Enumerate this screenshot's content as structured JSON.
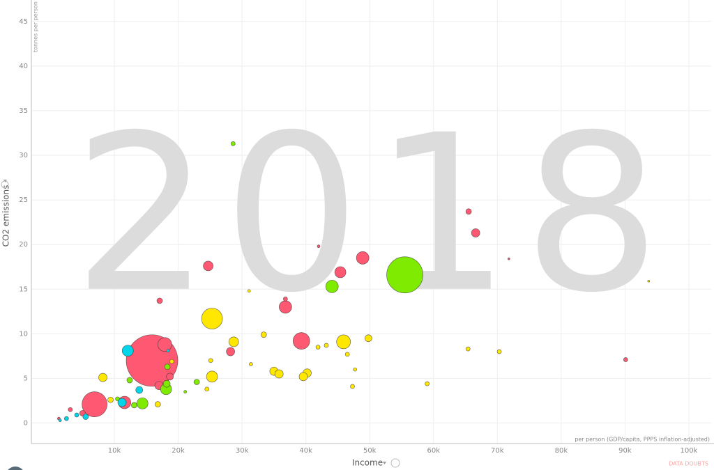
{
  "chart_data": {
    "type": "bubble",
    "watermark": "2018",
    "y_label": "CO2 emissions",
    "y_unit": "tonnes per person",
    "x_label": "Income",
    "x_unit": "per person (GDP/capita, PPPS inflation-adjusted)",
    "note": "DATA DOUBTS",
    "xlim": [
      -3000,
      103500
    ],
    "ylim": [
      -2.3,
      47.4
    ],
    "xticks": [
      {
        "value": 10000,
        "label": "10k"
      },
      {
        "value": 20000,
        "label": "20k"
      },
      {
        "value": 30000,
        "label": "30k"
      },
      {
        "value": 40000,
        "label": "40k"
      },
      {
        "value": 50000,
        "label": "50k"
      },
      {
        "value": 60000,
        "label": "60k"
      },
      {
        "value": 70000,
        "label": "70k"
      },
      {
        "value": 80000,
        "label": "80k"
      },
      {
        "value": 90000,
        "label": "90k"
      },
      {
        "value": 100000,
        "label": "100k"
      }
    ],
    "yticks": [
      0,
      5,
      10,
      15,
      20,
      25,
      30,
      35,
      40,
      45
    ],
    "grid": true,
    "series": [
      {
        "color": "#ff5872",
        "x": [
          15900,
          6900,
          17900,
          36800,
          39300,
          48900,
          45400,
          24700,
          17100,
          65500,
          66600,
          42000,
          36800,
          71800,
          90100,
          28200,
          11600,
          17000,
          18700,
          5000,
          3100,
          1300
        ],
        "values": [
          7.0,
          2.1,
          8.8,
          13.0,
          9.2,
          18.5,
          16.9,
          17.6,
          13.7,
          23.7,
          21.3,
          19.8,
          13.9,
          18.4,
          7.1,
          8.0,
          2.3,
          4.2,
          5.2,
          1.1,
          1.5,
          0.5
        ],
        "sizes": [
          1369,
          324,
          100,
          81,
          144,
          81,
          64,
          49,
          16,
          16,
          36,
          4,
          9,
          2,
          9,
          36,
          81,
          36,
          25,
          16,
          9,
          4
        ]
      },
      {
        "color": "#ffe700",
        "x": [
          25300,
          45900,
          28700,
          8200,
          25300,
          35000,
          35800,
          40200,
          39600,
          49800,
          33400,
          43200,
          41900,
          46500,
          65400,
          70300,
          59000,
          47300,
          47700,
          31100,
          93700,
          25100,
          19000,
          31400,
          24500,
          16800,
          9400
        ],
        "values": [
          11.7,
          9.1,
          9.1,
          5.1,
          5.2,
          5.8,
          5.5,
          5.6,
          5.2,
          9.5,
          9.9,
          8.7,
          8.5,
          7.7,
          8.3,
          8.0,
          4.4,
          4.1,
          6.0,
          14.8,
          15.9,
          7.0,
          6.9,
          6.6,
          3.8,
          2.1,
          2.6
        ],
        "sizes": [
          225,
          100,
          49,
          36,
          64,
          36,
          36,
          36,
          36,
          25,
          16,
          9,
          9,
          9,
          9,
          9,
          9,
          9,
          6,
          4,
          2,
          9,
          9,
          6,
          9,
          16,
          16
        ]
      },
      {
        "color": "#7feb00",
        "x": [
          55500,
          44100,
          28600,
          14400,
          18100,
          18200,
          12400,
          22900,
          13100,
          18300,
          10500,
          21100
        ],
        "values": [
          16.6,
          15.3,
          31.3,
          2.2,
          3.8,
          4.4,
          4.8,
          4.6,
          2.0,
          6.3,
          2.7,
          3.5
        ],
        "sizes": [
          676,
          81,
          9,
          64,
          64,
          25,
          16,
          16,
          16,
          16,
          9,
          4
        ]
      },
      {
        "color": "#00d5e9",
        "x": [
          12100,
          13900,
          11200,
          5500,
          4100,
          2500,
          1500,
          18400
        ],
        "values": [
          8.1,
          3.7,
          2.3,
          0.7,
          0.9,
          0.5,
          0.3,
          8.1
        ],
        "sizes": [
          64,
          25,
          36,
          16,
          9,
          9,
          4,
          4
        ]
      }
    ]
  }
}
